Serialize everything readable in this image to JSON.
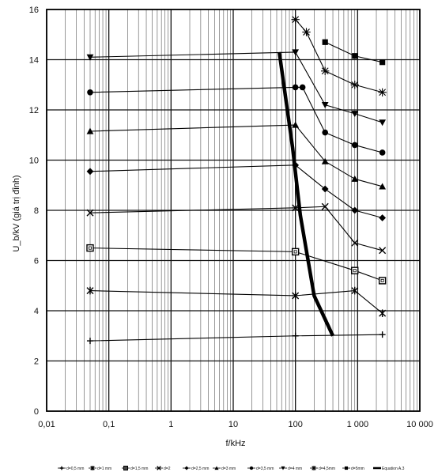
{
  "chart_data": {
    "type": "line",
    "xscale": "log",
    "xlim": [
      0.01,
      10000
    ],
    "ylim": [
      0,
      16
    ],
    "xlabel": "f/kHz",
    "ylabel": "U_b/kV  (giá trị đỉnh)",
    "x_tick_labels": [
      "0,01",
      "0,1",
      "1",
      "10",
      "100",
      "1 000",
      "10 000"
    ],
    "y_tick_labels": [
      "0",
      "2",
      "4",
      "6",
      "8",
      "10",
      "12",
      "14",
      "16"
    ],
    "grid": true,
    "legend_position": "bottom",
    "series": [
      {
        "name": "d=0,5 mm",
        "marker": "plus",
        "x": [
          0.05,
          100,
          2500
        ],
        "y": [
          2.8,
          3.0,
          3.05
        ]
      },
      {
        "name": "d=1 mm",
        "marker": "asterisk",
        "x": [
          0.05,
          100,
          900,
          2500
        ],
        "y": [
          4.8,
          4.6,
          4.8,
          3.9
        ]
      },
      {
        "name": "d=1,5 mm",
        "marker": "open-square",
        "x": [
          0.05,
          100,
          900,
          2500
        ],
        "y": [
          6.5,
          6.35,
          5.6,
          5.2
        ]
      },
      {
        "name": "d=2",
        "marker": "x",
        "x": [
          0.05,
          100,
          300,
          900,
          2500
        ],
        "y": [
          7.9,
          8.1,
          8.15,
          6.7,
          6.4
        ]
      },
      {
        "name": "d=2,5 mm",
        "marker": "diamond",
        "x": [
          0.05,
          100,
          300,
          900,
          2500
        ],
        "y": [
          9.55,
          9.8,
          8.85,
          8.0,
          7.7
        ]
      },
      {
        "name": "d=3 mm",
        "marker": "triangle",
        "x": [
          0.05,
          100,
          300,
          900,
          2500
        ],
        "y": [
          11.15,
          11.4,
          9.95,
          9.25,
          8.95
        ]
      },
      {
        "name": "d=3,5 mm",
        "marker": "circle",
        "x": [
          0.05,
          100,
          130,
          300,
          900,
          2500
        ],
        "y": [
          12.7,
          12.9,
          12.9,
          11.1,
          10.6,
          10.3
        ]
      },
      {
        "name": "d=4 mm",
        "marker": "triangle-down",
        "x": [
          0.05,
          100,
          300,
          900,
          2500
        ],
        "y": [
          14.1,
          14.3,
          12.2,
          11.85,
          11.5
        ]
      },
      {
        "name": "d=4,5mm",
        "marker": "star",
        "x": [
          100,
          150,
          300,
          900,
          2500
        ],
        "y": [
          15.6,
          15.1,
          13.55,
          13.0,
          12.7
        ]
      },
      {
        "name": "d=5mm",
        "marker": "square",
        "x": [
          300,
          900,
          2500
        ],
        "y": [
          14.7,
          14.15,
          13.9
        ]
      },
      {
        "name": "Equation A.3",
        "marker": "bold-line",
        "x": [
          55,
          90,
          120,
          200,
          400
        ],
        "y": [
          14.3,
          10.5,
          7.8,
          4.6,
          3.0
        ]
      }
    ]
  }
}
